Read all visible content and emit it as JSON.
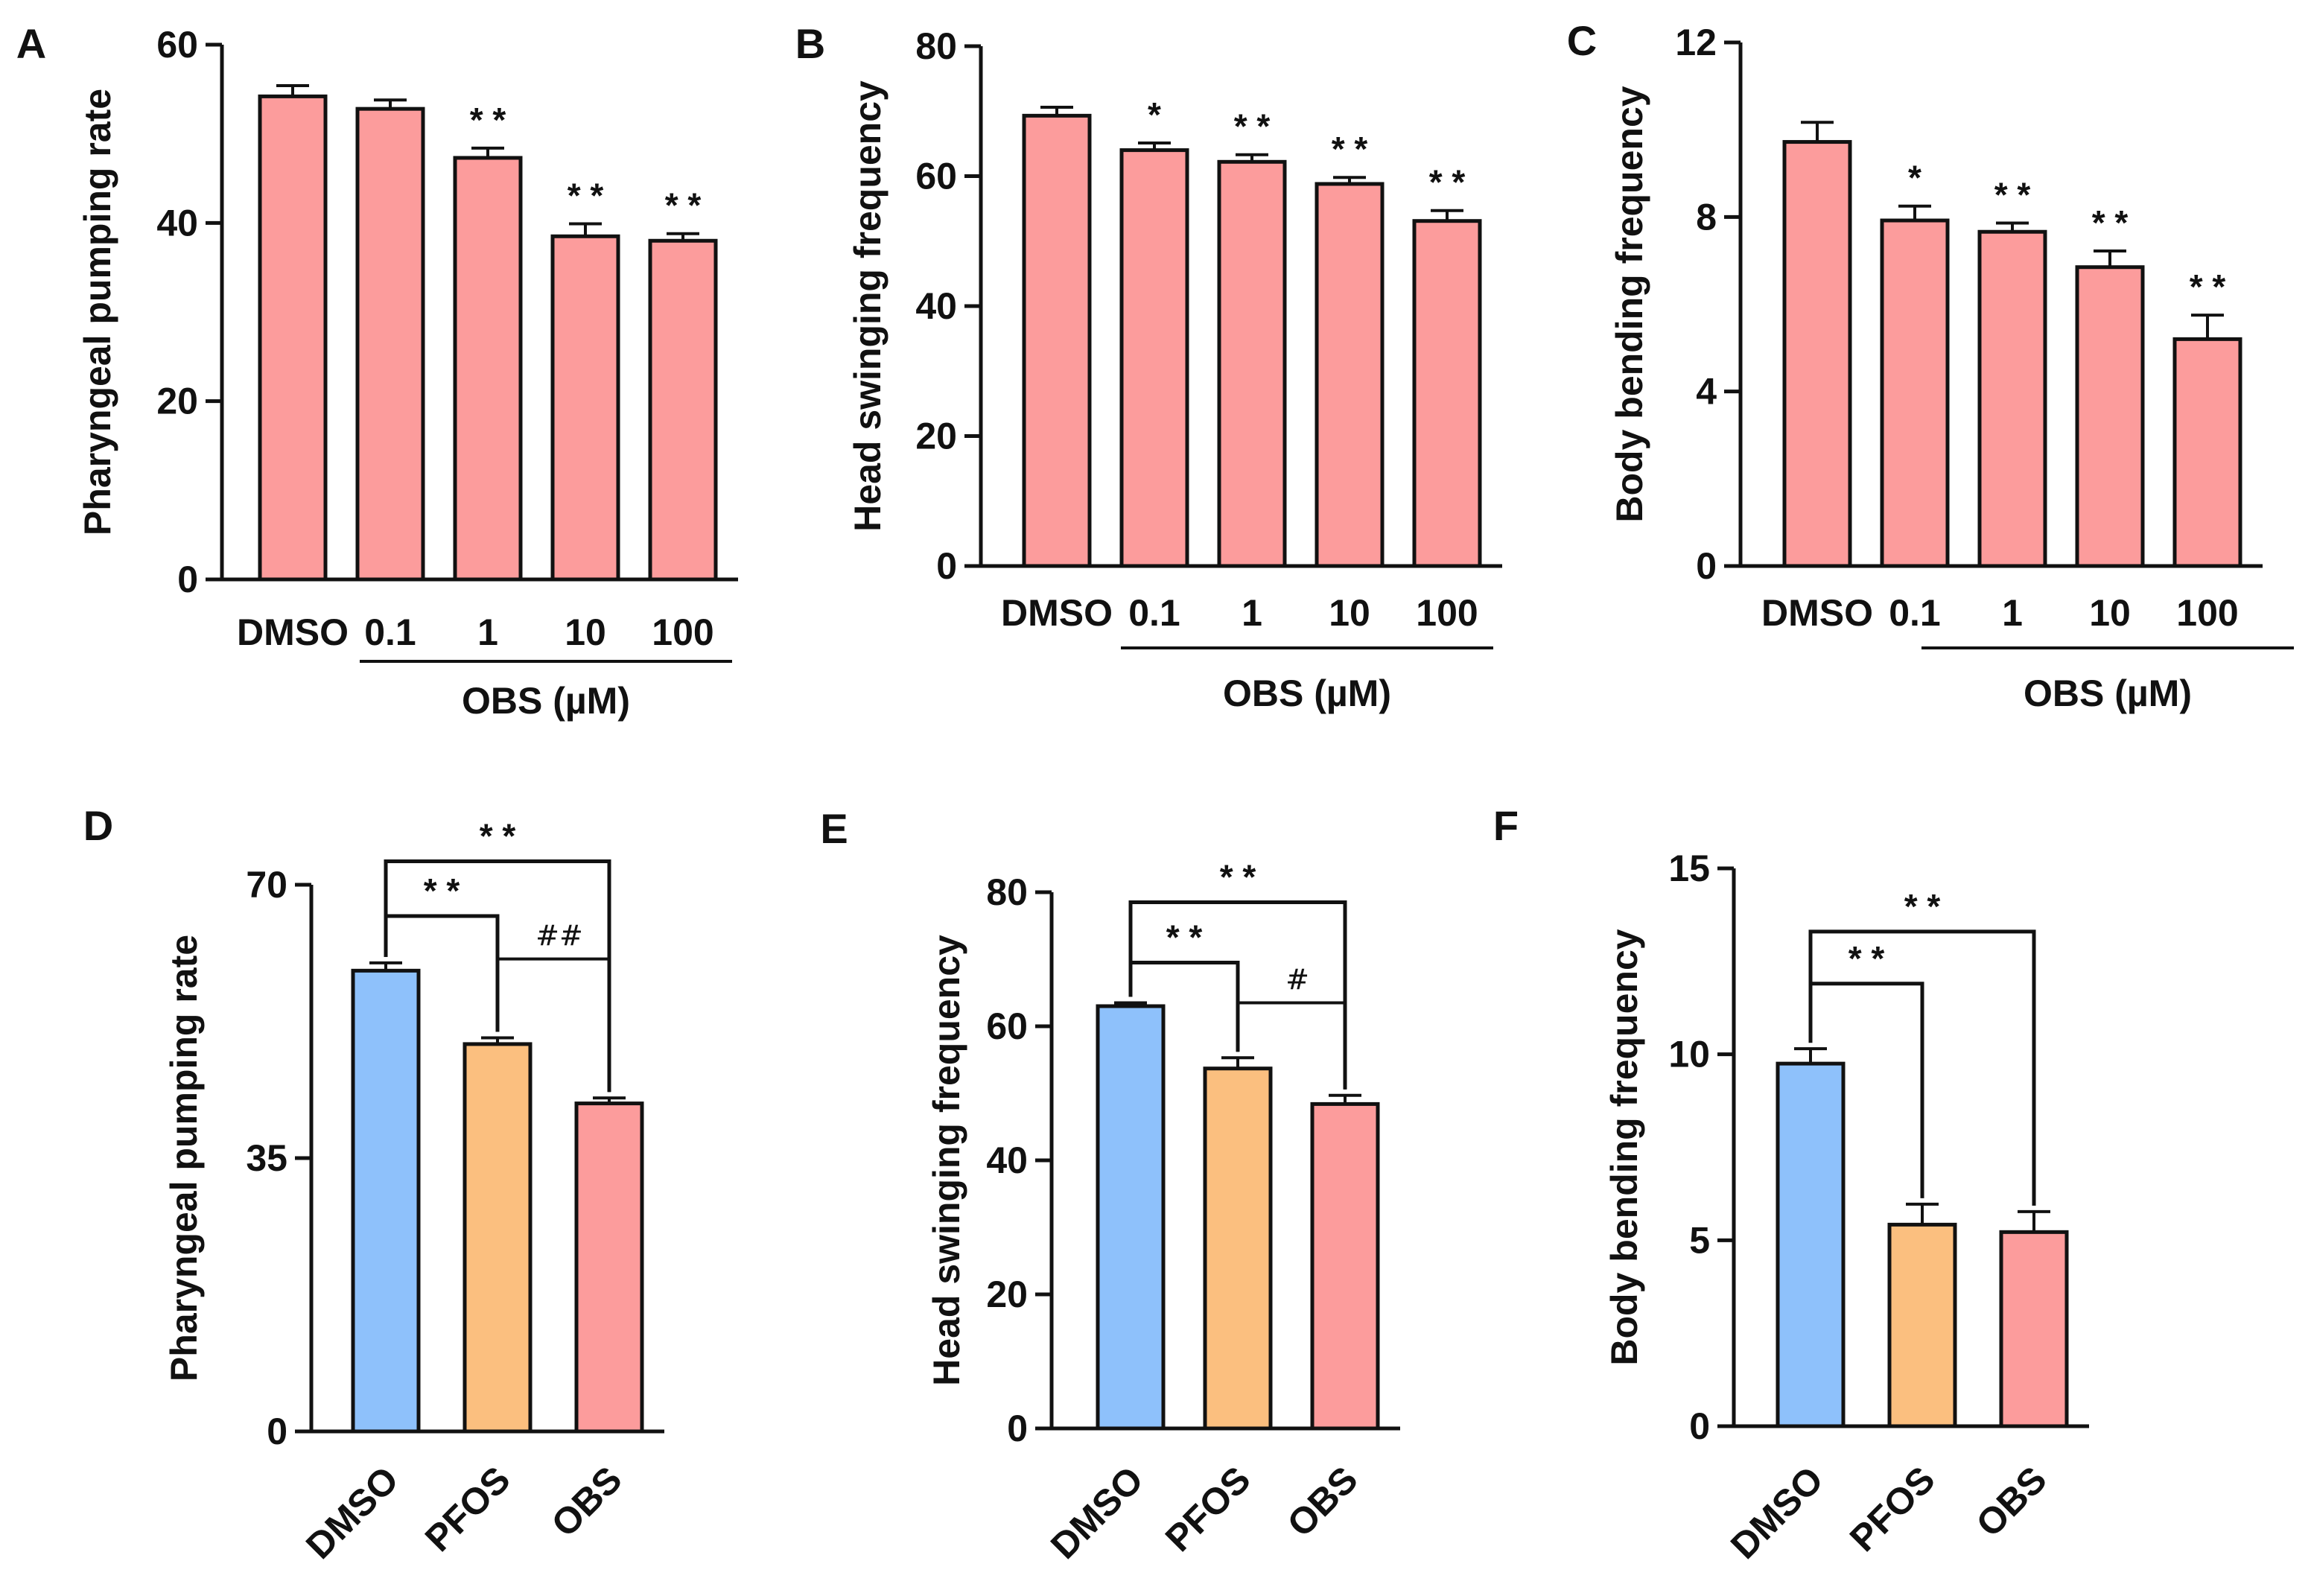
{
  "chart_data": [
    {
      "panel": "A",
      "type": "bar",
      "ylabel": "Pharyngeal pumping rate",
      "ylim": [
        0,
        60
      ],
      "yticks": [
        0,
        20,
        40,
        60
      ],
      "categories": [
        "DMSO",
        "0.1",
        "1",
        "10",
        "100"
      ],
      "group_label": "OBS (µM)",
      "values": [
        54.2,
        52.8,
        47.3,
        38.5,
        38.0
      ],
      "errors": [
        1.2,
        1.0,
        1.1,
        1.4,
        0.8
      ],
      "colors": [
        "#fc9c9c",
        "#fc9c9c",
        "#fc9c9c",
        "#fc9c9c",
        "#fc9c9c"
      ],
      "annotations": [
        "",
        "",
        "* *",
        "* *",
        "* *"
      ]
    },
    {
      "panel": "B",
      "type": "bar",
      "ylabel": "Head swinging frequency",
      "ylim": [
        0,
        80
      ],
      "yticks": [
        0,
        20,
        40,
        60,
        80
      ],
      "categories": [
        "DMSO",
        "0.1",
        "1",
        "10",
        "100"
      ],
      "group_label": "OBS (µM)",
      "values": [
        69.3,
        64.0,
        62.2,
        58.8,
        53.1
      ],
      "errors": [
        1.3,
        1.1,
        1.1,
        1.0,
        1.6
      ],
      "colors": [
        "#fc9c9c",
        "#fc9c9c",
        "#fc9c9c",
        "#fc9c9c",
        "#fc9c9c"
      ],
      "annotations": [
        "",
        "*",
        "* *",
        "* *",
        "* *"
      ]
    },
    {
      "panel": "C",
      "type": "bar",
      "ylabel": "Body bending frequency",
      "ylim": [
        0,
        12
      ],
      "yticks": [
        0,
        4,
        8,
        12
      ],
      "categories": [
        "DMSO",
        "0.1",
        "1",
        "10",
        "100"
      ],
      "group_label": "OBS (µM)",
      "values": [
        9.72,
        7.92,
        7.66,
        6.85,
        5.2
      ],
      "errors": [
        0.45,
        0.33,
        0.2,
        0.37,
        0.55
      ],
      "colors": [
        "#fc9c9c",
        "#fc9c9c",
        "#fc9c9c",
        "#fc9c9c",
        "#fc9c9c"
      ],
      "annotations": [
        "",
        "*",
        "* *",
        "* *",
        "* *"
      ]
    },
    {
      "panel": "D",
      "type": "bar",
      "ylabel": "Pharyngeal pumping rate",
      "ylim": [
        0,
        70
      ],
      "yticks": [
        0,
        35,
        70
      ],
      "categories": [
        "DMSO",
        "PFOS",
        "OBS"
      ],
      "values": [
        59.0,
        49.6,
        42.0
      ],
      "errors": [
        1.0,
        0.8,
        0.7
      ],
      "colors": [
        "#8ec1fb",
        "#fbbf7f",
        "#fc9c9c"
      ],
      "comparisons": [
        {
          "from": 0,
          "to": 1,
          "label": "* *",
          "level": 66
        },
        {
          "from": 0,
          "to": 2,
          "label": "* *",
          "level": 73
        },
        {
          "from": 1,
          "to": 2,
          "label": "##",
          "level": 60.5
        }
      ]
    },
    {
      "panel": "E",
      "type": "bar",
      "ylabel": "Head swinging frequency",
      "ylim": [
        0,
        80
      ],
      "yticks": [
        0,
        20,
        40,
        60,
        80
      ],
      "categories": [
        "DMSO",
        "PFOS",
        "OBS"
      ],
      "values": [
        63.0,
        53.7,
        48.4
      ],
      "errors": [
        0.5,
        1.6,
        1.3
      ],
      "colors": [
        "#8ec1fb",
        "#fbbf7f",
        "#fc9c9c"
      ],
      "comparisons": [
        {
          "from": 0,
          "to": 1,
          "label": "* *",
          "level": 69.5
        },
        {
          "from": 0,
          "to": 2,
          "label": "* *",
          "level": 78.5
        },
        {
          "from": 1,
          "to": 2,
          "label": "#",
          "level": 63.5
        }
      ]
    },
    {
      "panel": "F",
      "type": "bar",
      "ylabel": "Body bending frequency",
      "ylim": [
        0,
        15
      ],
      "yticks": [
        0,
        5,
        10,
        15
      ],
      "categories": [
        "DMSO",
        "PFOS",
        "OBS"
      ],
      "values": [
        9.75,
        5.42,
        5.22
      ],
      "errors": [
        0.4,
        0.55,
        0.55
      ],
      "colors": [
        "#8ec1fb",
        "#fbbf7f",
        "#fc9c9c"
      ],
      "comparisons": [
        {
          "from": 0,
          "to": 1,
          "label": "* *",
          "level": 11.9
        },
        {
          "from": 0,
          "to": 2,
          "label": "* *",
          "level": 13.3
        }
      ]
    }
  ]
}
